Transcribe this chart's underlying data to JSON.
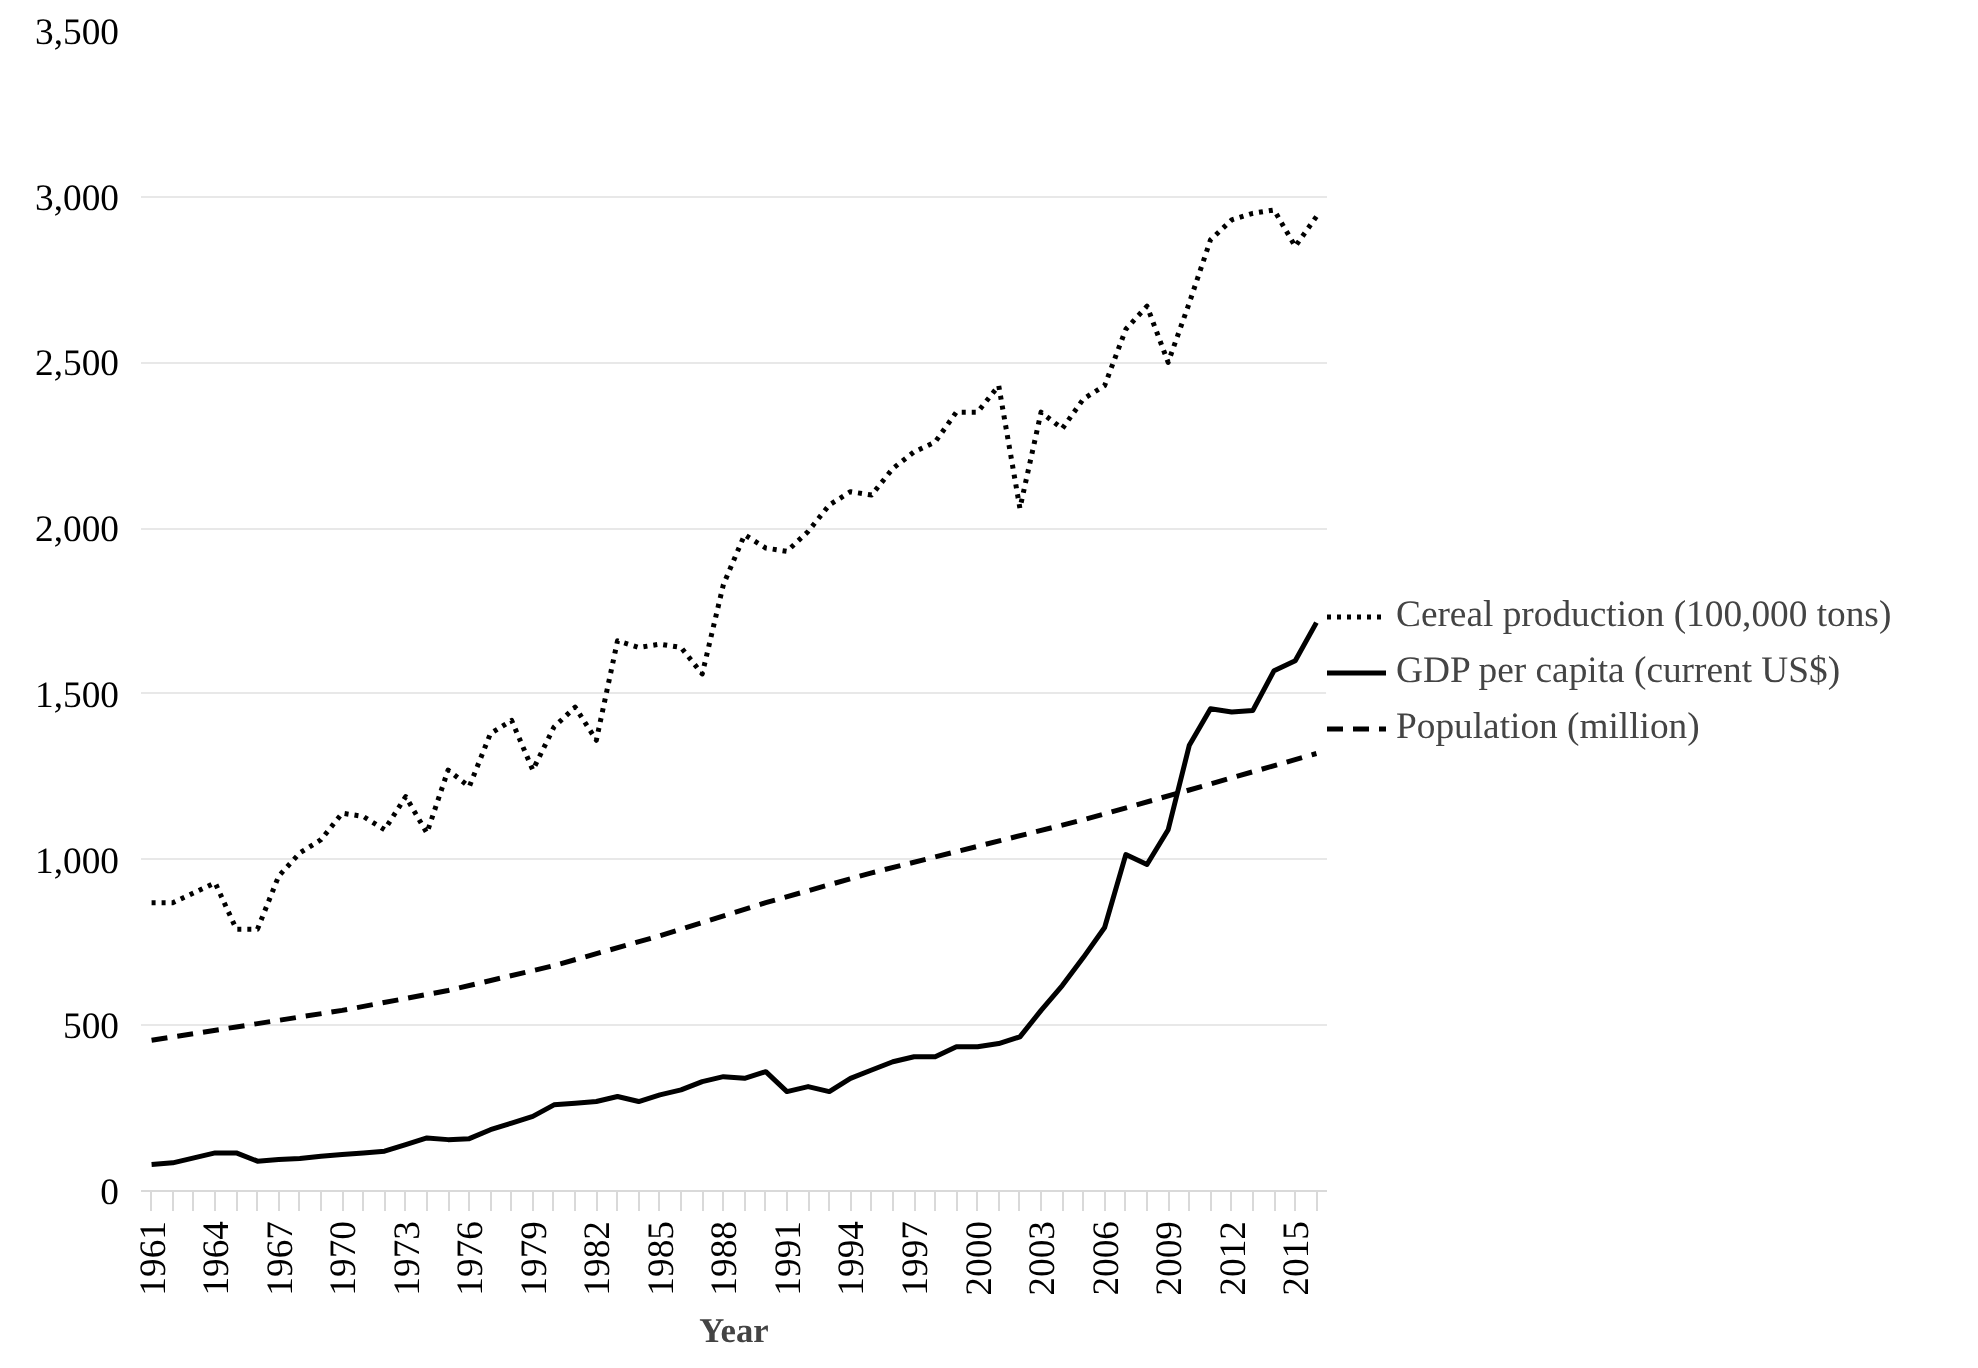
{
  "chart_data": {
    "type": "line",
    "xlabel": "Year",
    "xlim": [
      1960.5,
      2016.5
    ],
    "ylim": [
      0,
      3500
    ],
    "yticks": [
      {
        "value": 0,
        "label": "0"
      },
      {
        "value": 500,
        "label": "500"
      },
      {
        "value": 1000,
        "label": "1,000"
      },
      {
        "value": 1500,
        "label": "1,500"
      },
      {
        "value": 2000,
        "label": "2,000"
      },
      {
        "value": 2500,
        "label": "2,500"
      },
      {
        "value": 3000,
        "label": "3,000"
      },
      {
        "value": 3500,
        "label": "3,500"
      }
    ],
    "xticks": [
      1961,
      {
        "value": 1962,
        "label": null
      },
      {
        "value": 1963,
        "label": null
      },
      1964,
      {
        "value": 1965,
        "label": null
      },
      {
        "value": 1966,
        "label": null
      },
      1967,
      {
        "value": 1968,
        "label": null
      },
      {
        "value": 1969,
        "label": null
      },
      1970,
      {
        "value": 1971,
        "label": null
      },
      {
        "value": 1972,
        "label": null
      },
      1973,
      {
        "value": 1974,
        "label": null
      },
      {
        "value": 1975,
        "label": null
      },
      1976,
      {
        "value": 1977,
        "label": null
      },
      {
        "value": 1978,
        "label": null
      },
      1979,
      {
        "value": 1980,
        "label": null
      },
      {
        "value": 1981,
        "label": null
      },
      1982,
      {
        "value": 1983,
        "label": null
      },
      {
        "value": 1984,
        "label": null
      },
      1985,
      {
        "value": 1986,
        "label": null
      },
      {
        "value": 1987,
        "label": null
      },
      1988,
      {
        "value": 1989,
        "label": null
      },
      {
        "value": 1990,
        "label": null
      },
      1991,
      {
        "value": 1992,
        "label": null
      },
      {
        "value": 1993,
        "label": null
      },
      1994,
      {
        "value": 1995,
        "label": null
      },
      {
        "value": 1996,
        "label": null
      },
      1997,
      {
        "value": 1998,
        "label": null
      },
      {
        "value": 1999,
        "label": null
      },
      2000,
      {
        "value": 2001,
        "label": null
      },
      {
        "value": 2002,
        "label": null
      },
      2003,
      {
        "value": 2004,
        "label": null
      },
      {
        "value": 2005,
        "label": null
      },
      2006,
      {
        "value": 2007,
        "label": null
      },
      {
        "value": 2008,
        "label": null
      },
      2009,
      {
        "value": 2010,
        "label": null
      },
      {
        "value": 2011,
        "label": null
      },
      2012,
      {
        "value": 2013,
        "label": null
      },
      {
        "value": 2014,
        "label": null
      },
      2015,
      {
        "value": 2016,
        "label": null
      }
    ],
    "x": [
      1961,
      1962,
      1963,
      1964,
      1965,
      1966,
      1967,
      1968,
      1969,
      1970,
      1971,
      1972,
      1973,
      1974,
      1975,
      1976,
      1977,
      1978,
      1979,
      1980,
      1981,
      1982,
      1983,
      1984,
      1985,
      1986,
      1987,
      1988,
      1989,
      1990,
      1991,
      1992,
      1993,
      1994,
      1995,
      1996,
      1997,
      1998,
      1999,
      2000,
      2001,
      2002,
      2003,
      2004,
      2005,
      2006,
      2007,
      2008,
      2009,
      2010,
      2011,
      2012,
      2013,
      2014,
      2015,
      2016
    ],
    "grid": "y",
    "legend": "right",
    "marker": "none",
    "series": [
      {
        "name": "Cereal production (100,000 tons)",
        "color": "#000000",
        "line_style": "dotted",
        "values": [
          870,
          870,
          900,
          930,
          790,
          790,
          950,
          1020,
          1060,
          1140,
          1130,
          1090,
          1190,
          1080,
          1270,
          1220,
          1380,
          1420,
          1270,
          1400,
          1460,
          1360,
          1660,
          1640,
          1650,
          1640,
          1560,
          1830,
          1980,
          1940,
          1930,
          1990,
          2070,
          2110,
          2100,
          2180,
          2230,
          2260,
          2350,
          2350,
          2430,
          2060,
          2350,
          2300,
          2390,
          2430,
          2600,
          2670,
          2500,
          2680,
          2870,
          2930,
          2950,
          2960,
          2850,
          2940
        ]
      },
      {
        "name": "GDP per capita (current US$)",
        "color": "#000000",
        "line_style": "solid",
        "values": [
          80,
          85,
          100,
          115,
          115,
          90,
          95,
          98,
          105,
          110,
          115,
          120,
          140,
          160,
          155,
          158,
          185,
          205,
          225,
          260,
          265,
          270,
          285,
          270,
          290,
          305,
          330,
          345,
          340,
          360,
          300,
          315,
          300,
          340,
          365,
          390,
          405,
          405,
          435,
          435,
          445,
          465,
          545,
          620,
          705,
          795,
          1015,
          985,
          1090,
          1345,
          1455,
          1445,
          1450,
          1570,
          1600,
          1715
        ]
      },
      {
        "name": "Population (million)",
        "color": "#000000",
        "line_style": "dashed",
        "x": [
          1961,
          1965,
          1970,
          1975,
          1980,
          1985,
          1990,
          1995,
          2000,
          2005,
          2010,
          2016
        ],
        "values": [
          455,
          495,
          545,
          605,
          680,
          770,
          870,
          960,
          1040,
          1120,
          1210,
          1320
        ]
      }
    ]
  }
}
